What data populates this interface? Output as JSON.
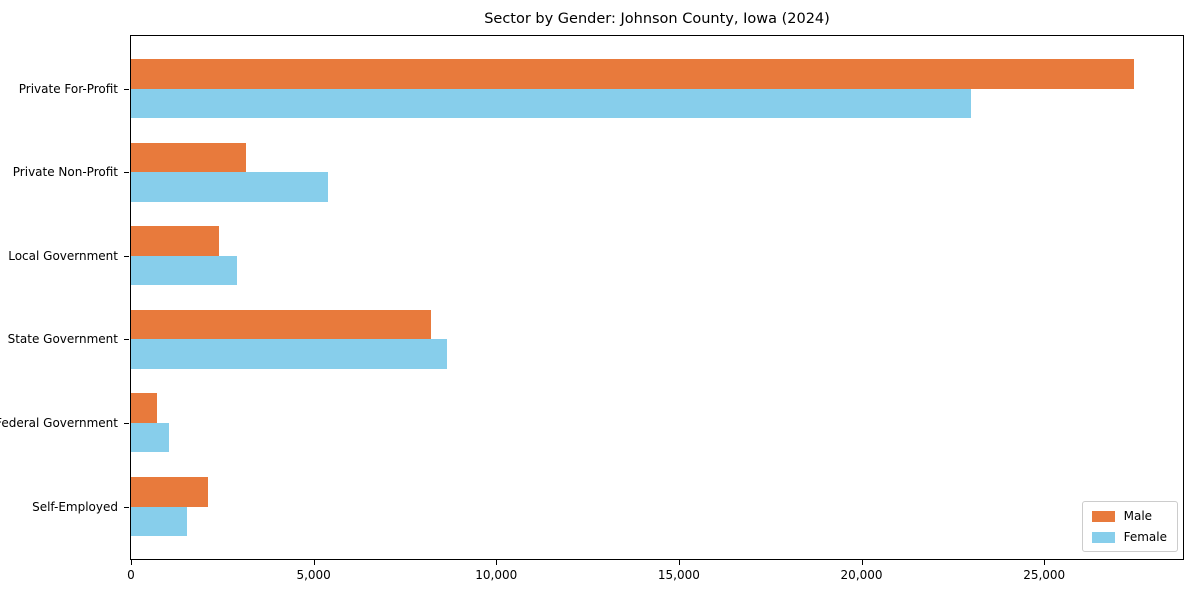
{
  "figure": {
    "background": "#ffffff",
    "frame_color": "#000000"
  },
  "chart_data": {
    "type": "bar",
    "orientation": "horizontal",
    "title": "Sector by Gender: Johnson County, Iowa (2024)",
    "xlabel": "",
    "ylabel": "",
    "categories": [
      "Private For-Profit",
      "Private Non-Profit",
      "Local Government",
      "State Government",
      "Federal Government",
      "Self-Employed"
    ],
    "series": [
      {
        "name": "Male",
        "color": "#e87a3c",
        "values": [
          27450,
          3150,
          2400,
          8200,
          700,
          2100
        ]
      },
      {
        "name": "Female",
        "color": "#87ceeb",
        "values": [
          23000,
          5400,
          2900,
          8650,
          1050,
          1520
        ]
      }
    ],
    "xlim": [
      0,
      28800
    ],
    "xticks": [
      0,
      5000,
      10000,
      15000,
      20000,
      25000
    ],
    "xtick_labels": [
      "0",
      "5,000",
      "10,000",
      "15,000",
      "20,000",
      "25,000"
    ],
    "grid": false,
    "legend": {
      "position": "lower right",
      "entries": [
        "Male",
        "Female"
      ]
    }
  }
}
